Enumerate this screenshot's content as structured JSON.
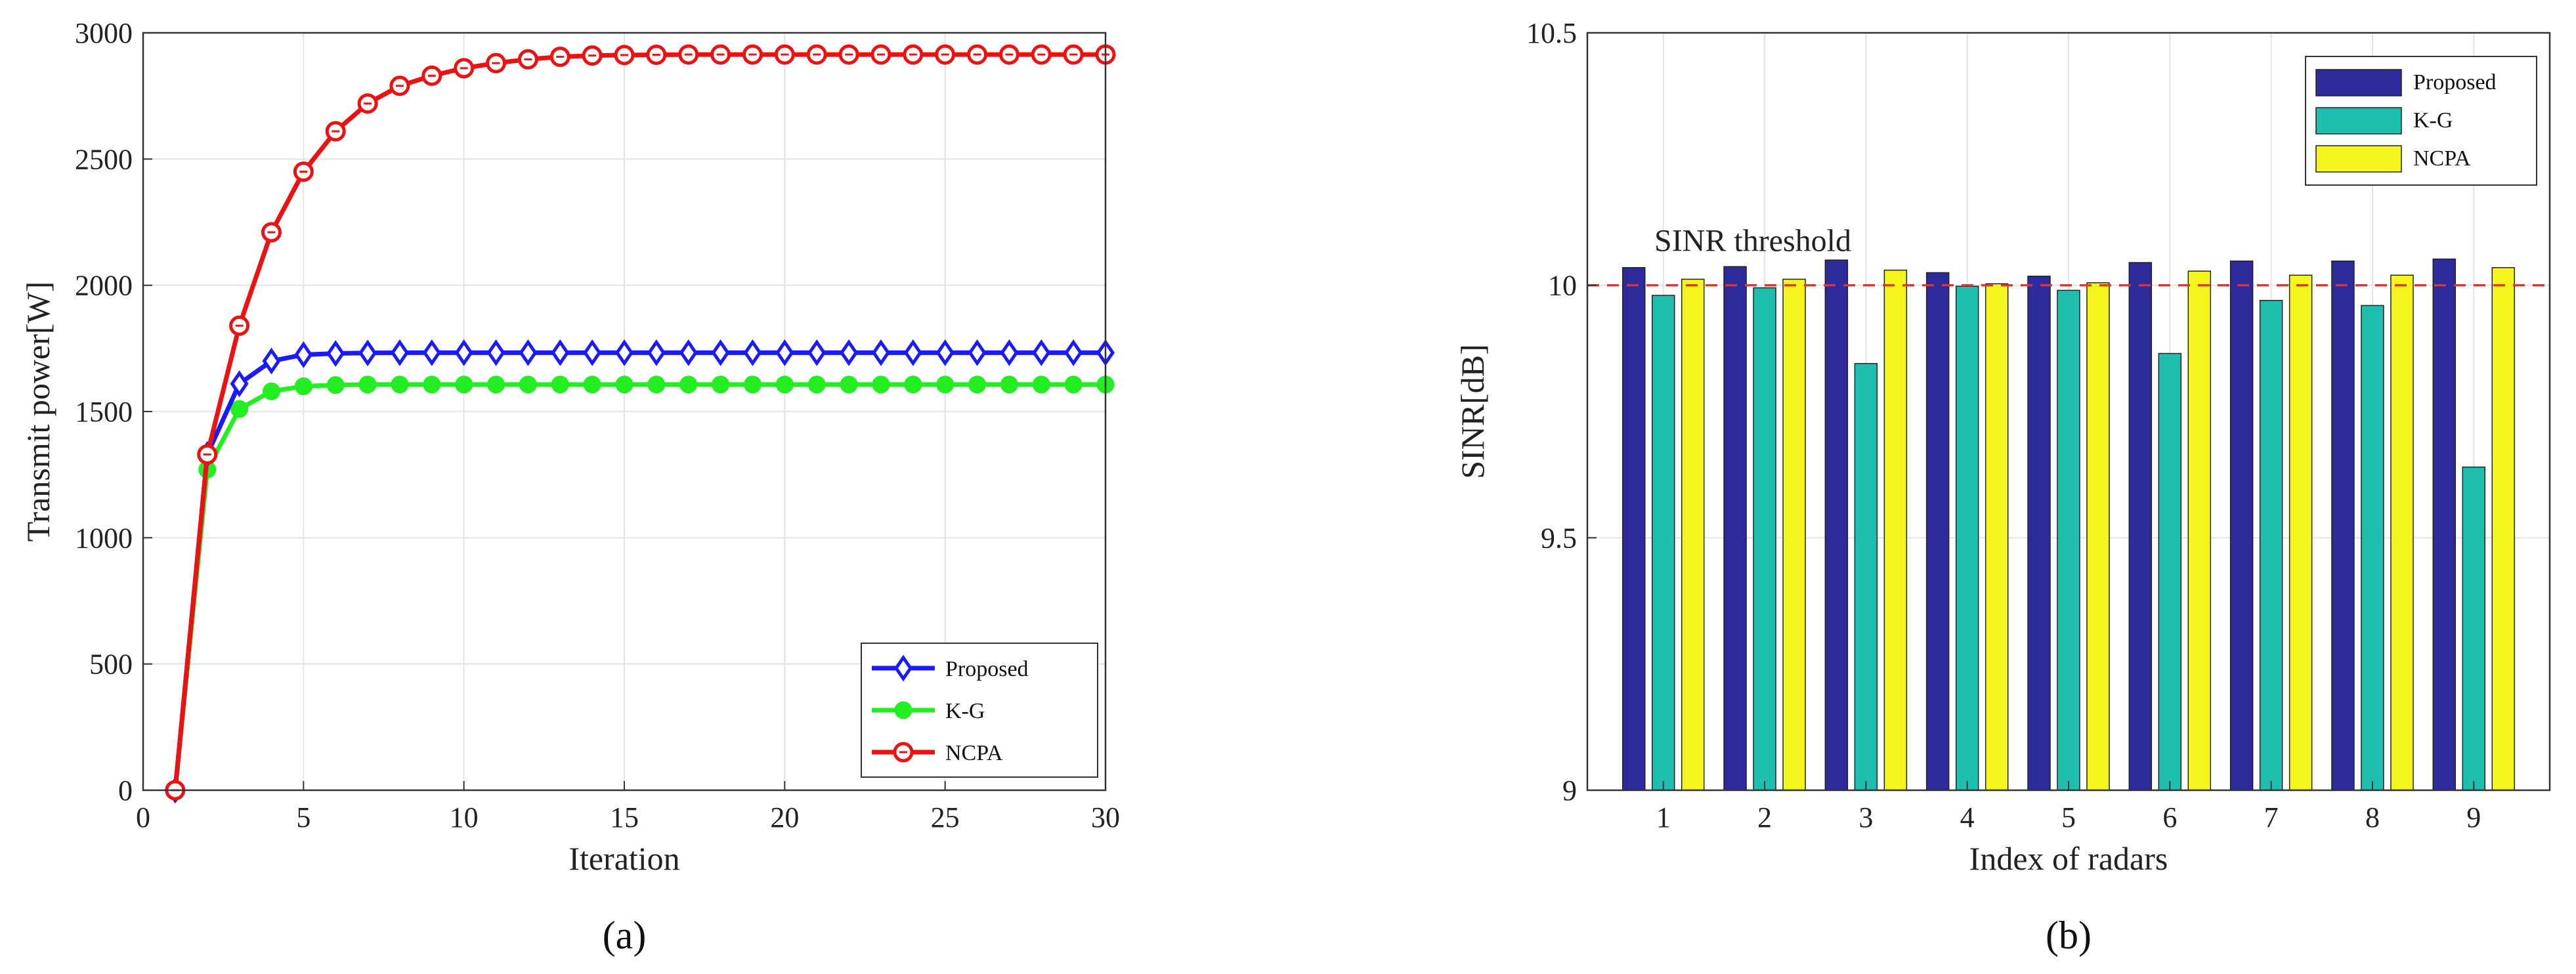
{
  "chart_data": [
    {
      "type": "line",
      "title": "",
      "xlabel": "Iteration",
      "ylabel": "Transmit power[W]",
      "xlim": [
        0,
        30
      ],
      "ylim": [
        0,
        3000
      ],
      "xticks": [
        0,
        5,
        10,
        15,
        20,
        25,
        30
      ],
      "yticks": [
        0,
        500,
        1000,
        1500,
        2000,
        2500,
        3000
      ],
      "grid": true,
      "legend_position": "bottom-right",
      "x": [
        1,
        2,
        3,
        4,
        5,
        6,
        7,
        8,
        9,
        10,
        11,
        12,
        13,
        14,
        15,
        16,
        17,
        18,
        19,
        20,
        21,
        22,
        23,
        24,
        25,
        26,
        27,
        28,
        29,
        30
      ],
      "series": [
        {
          "name": "Proposed",
          "color": "#1a1aff",
          "marker": "diamond",
          "values": [
            0,
            1330,
            1610,
            1700,
            1725,
            1730,
            1732,
            1733,
            1733,
            1733,
            1733,
            1733,
            1733,
            1733,
            1733,
            1733,
            1733,
            1733,
            1733,
            1733,
            1733,
            1733,
            1733,
            1733,
            1733,
            1733,
            1733,
            1733,
            1733,
            1733
          ]
        },
        {
          "name": "K-G",
          "color": "#22ee22",
          "marker": "circle-filled",
          "values": [
            0,
            1270,
            1510,
            1580,
            1600,
            1605,
            1607,
            1607,
            1607,
            1607,
            1607,
            1607,
            1607,
            1607,
            1607,
            1607,
            1607,
            1607,
            1607,
            1607,
            1607,
            1607,
            1607,
            1607,
            1607,
            1607,
            1607,
            1607,
            1607,
            1607
          ]
        },
        {
          "name": "NCPA",
          "color": "#ee1111",
          "marker": "circle-open",
          "values": [
            0,
            1330,
            1840,
            2210,
            2450,
            2610,
            2720,
            2790,
            2830,
            2860,
            2880,
            2895,
            2905,
            2910,
            2912,
            2913,
            2914,
            2914,
            2914,
            2914,
            2914,
            2914,
            2914,
            2914,
            2914,
            2914,
            2914,
            2914,
            2914,
            2914
          ]
        }
      ],
      "caption": "(a)"
    },
    {
      "type": "bar",
      "title": "",
      "xlabel": "Index of radars",
      "ylabel": "SINR[dB]",
      "ylim": [
        9,
        10.5
      ],
      "yticks": [
        "9",
        "9.5",
        "10",
        "10.5"
      ],
      "categories": [
        "1",
        "2",
        "3",
        "4",
        "5",
        "6",
        "7",
        "8",
        "9"
      ],
      "grid": true,
      "legend_position": "top-right",
      "series": [
        {
          "name": "Proposed",
          "color": "#2d2a9c",
          "values": [
            10.035,
            10.037,
            10.05,
            10.025,
            10.018,
            10.045,
            10.048,
            10.048,
            10.052
          ]
        },
        {
          "name": "K-G",
          "color": "#1fbfb0",
          "values": [
            9.98,
            9.995,
            9.845,
            9.998,
            9.99,
            9.865,
            9.97,
            9.96,
            9.64
          ]
        },
        {
          "name": "NCPA",
          "color": "#f5f51e",
          "values": [
            10.012,
            10.012,
            10.03,
            10.003,
            10.005,
            10.028,
            10.02,
            10.02,
            10.035
          ]
        }
      ],
      "threshold": {
        "value": 10,
        "label": "SINR threshold",
        "color": "#e8312a"
      },
      "caption": "(b)"
    }
  ]
}
